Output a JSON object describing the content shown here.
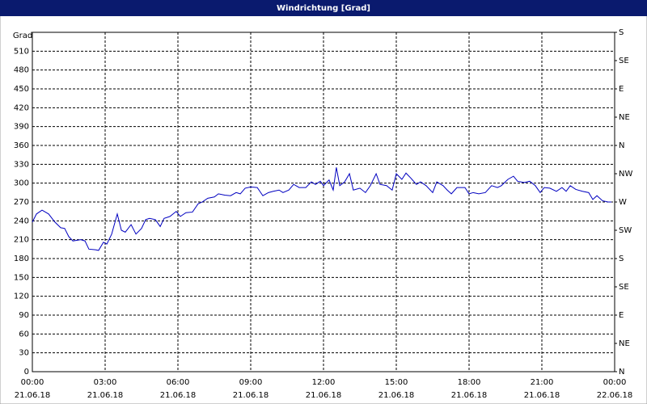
{
  "chart_data": {
    "type": "line",
    "title": "Windrichtung [Grad]",
    "y_label": "Grad",
    "x": [
      0,
      0.17,
      0.4,
      0.67,
      0.93,
      1.17,
      1.33,
      1.5,
      1.67,
      2,
      2.17,
      2.33,
      2.6,
      2.73,
      2.93,
      3.07,
      3.27,
      3.5,
      3.67,
      3.83,
      4.07,
      4.27,
      4.5,
      4.67,
      4.83,
      5.07,
      5.27,
      5.43,
      5.67,
      5.93,
      6.1,
      6.33,
      6.6,
      6.83,
      7,
      7.23,
      7.5,
      7.67,
      7.93,
      8.17,
      8.4,
      8.57,
      8.77,
      9,
      9.27,
      9.5,
      9.73,
      9.93,
      10.17,
      10.33,
      10.57,
      10.77,
      11,
      11.27,
      11.5,
      11.67,
      11.87,
      12,
      12.23,
      12.4,
      12.53,
      12.67,
      12.87,
      13.07,
      13.23,
      13.5,
      13.73,
      13.93,
      14.17,
      14.33,
      14.6,
      14.83,
      15,
      15.23,
      15.4,
      15.6,
      15.83,
      16,
      16.23,
      16.5,
      16.67,
      16.93,
      17.1,
      17.27,
      17.5,
      17.83,
      18,
      18.17,
      18.4,
      18.67,
      18.93,
      19.17,
      19.33,
      19.6,
      19.83,
      20,
      20.27,
      20.5,
      20.73,
      20.93,
      21.1,
      21.33,
      21.6,
      21.83,
      22,
      22.17,
      22.4,
      22.67,
      22.93,
      23.1,
      23.27,
      23.5,
      23.73,
      23.87
    ],
    "series": [
      {
        "name": "Windrichtung",
        "color": "#0000c0",
        "values": [
          238,
          251,
          257,
          251,
          238,
          229,
          228,
          215,
          208,
          210,
          208,
          195,
          194,
          193,
          206,
          203,
          219,
          251,
          225,
          222,
          234,
          219,
          228,
          242,
          244,
          242,
          231,
          244,
          247,
          255,
          247,
          253,
          254,
          267,
          270,
          276,
          278,
          283,
          281,
          280,
          285,
          283,
          292,
          294,
          293,
          280,
          285,
          287,
          289,
          285,
          289,
          298,
          293,
          293,
          302,
          298,
          303,
          296,
          305,
          289,
          325,
          296,
          302,
          315,
          289,
          292,
          285,
          296,
          315,
          298,
          296,
          289,
          315,
          306,
          316,
          308,
          298,
          302,
          296,
          285,
          302,
          296,
          289,
          283,
          293,
          293,
          283,
          285,
          283,
          285,
          296,
          293,
          296,
          306,
          311,
          303,
          301,
          303,
          296,
          285,
          293,
          292,
          287,
          293,
          287,
          296,
          290,
          287,
          285,
          274,
          280,
          272,
          270,
          270
        ]
      }
    ],
    "xlim": [
      0,
      24
    ],
    "xticks": [
      {
        "value": 0,
        "label": "00:00",
        "date": "21.06.18"
      },
      {
        "value": 3,
        "label": "03:00",
        "date": "21.06.18"
      },
      {
        "value": 6,
        "label": "06:00",
        "date": "21.06.18"
      },
      {
        "value": 9,
        "label": "09:00",
        "date": "21.06.18"
      },
      {
        "value": 12,
        "label": "12:00",
        "date": "21.06.18"
      },
      {
        "value": 15,
        "label": "15:00",
        "date": "21.06.18"
      },
      {
        "value": 18,
        "label": "18:00",
        "date": "21.06.18"
      },
      {
        "value": 21,
        "label": "21:00",
        "date": "21.06.18"
      },
      {
        "value": 24,
        "label": "00:00",
        "date": "22.06.18"
      }
    ],
    "ylim": [
      0,
      540
    ],
    "yticks": [
      0,
      30,
      60,
      90,
      120,
      150,
      180,
      210,
      240,
      270,
      300,
      330,
      360,
      390,
      420,
      450,
      480,
      510
    ],
    "y2lim": [
      0,
      540
    ],
    "y2ticks": [
      {
        "value": 0,
        "label": "N"
      },
      {
        "value": 45,
        "label": "NE"
      },
      {
        "value": 90,
        "label": "E"
      },
      {
        "value": 135,
        "label": "SE"
      },
      {
        "value": 180,
        "label": "S"
      },
      {
        "value": 225,
        "label": "SW"
      },
      {
        "value": 270,
        "label": "W"
      },
      {
        "value": 315,
        "label": "NW"
      },
      {
        "value": 360,
        "label": "N"
      },
      {
        "value": 405,
        "label": "NE"
      },
      {
        "value": 450,
        "label": "E"
      },
      {
        "value": 495,
        "label": "SE"
      },
      {
        "value": 540,
        "label": "S"
      }
    ],
    "grid": true
  }
}
